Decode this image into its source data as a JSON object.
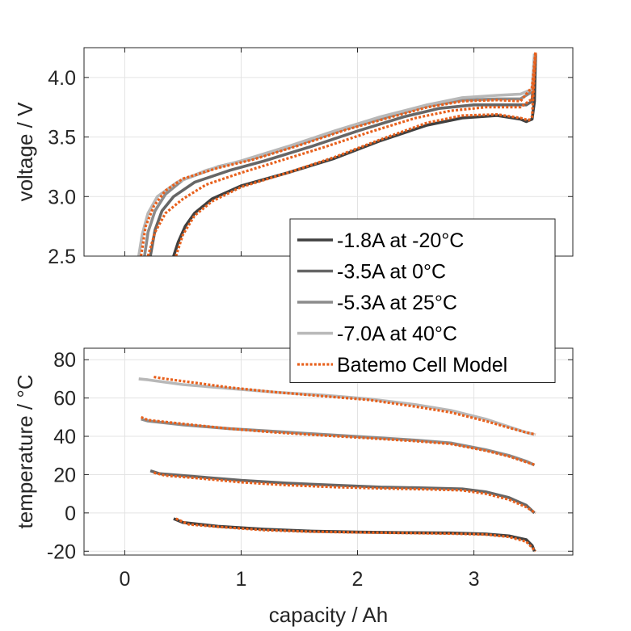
{
  "chart_data": [
    {
      "type": "line",
      "ylabel": "voltage / V",
      "xlabel": "",
      "xlim": [
        -0.35,
        3.85
      ],
      "ylim": [
        2.5,
        4.25
      ],
      "xticks": [
        0,
        1,
        2,
        3
      ],
      "yticks": [
        2.5,
        3.0,
        3.5,
        4.0
      ],
      "ytick_labels": [
        "2.5",
        "3.0",
        "3.5",
        "4.0"
      ],
      "grid": true,
      "legend_placement": "bottom-right, overlapping",
      "series": [
        {
          "name": "-1.8A at -20°C",
          "color": "#404040",
          "style": "solid",
          "x": [
            0.42,
            0.46,
            0.52,
            0.6,
            0.75,
            1.0,
            1.4,
            1.8,
            2.2,
            2.6,
            2.9,
            3.2,
            3.4,
            3.45,
            3.5,
            3.52,
            3.53
          ],
          "y": [
            2.5,
            2.62,
            2.75,
            2.86,
            2.98,
            3.09,
            3.2,
            3.32,
            3.47,
            3.6,
            3.66,
            3.68,
            3.65,
            3.63,
            3.65,
            3.8,
            4.2
          ]
        },
        {
          "name": "-3.5A at 0°C",
          "color": "#666666",
          "style": "solid",
          "x": [
            0.22,
            0.26,
            0.32,
            0.42,
            0.6,
            0.9,
            1.2,
            1.6,
            2.0,
            2.4,
            2.7,
            3.0,
            3.3,
            3.45,
            3.5,
            3.52
          ],
          "y": [
            2.5,
            2.72,
            2.88,
            3.0,
            3.12,
            3.22,
            3.3,
            3.42,
            3.55,
            3.67,
            3.74,
            3.77,
            3.77,
            3.77,
            3.8,
            4.15
          ]
        },
        {
          "name": "-5.3A at 25°C",
          "color": "#8c8c8c",
          "style": "solid",
          "x": [
            0.17,
            0.2,
            0.26,
            0.35,
            0.5,
            0.8,
            1.1,
            1.5,
            1.9,
            2.3,
            2.6,
            2.9,
            3.2,
            3.4,
            3.5,
            3.52
          ],
          "y": [
            2.5,
            2.7,
            2.88,
            3.02,
            3.14,
            3.25,
            3.32,
            3.44,
            3.57,
            3.68,
            3.76,
            3.81,
            3.82,
            3.82,
            3.88,
            4.18
          ]
        },
        {
          "name": "-7.0A at 40°C",
          "color": "#b8b8b8",
          "style": "solid",
          "x": [
            0.12,
            0.15,
            0.2,
            0.28,
            0.45,
            0.7,
            1.0,
            1.4,
            1.8,
            2.2,
            2.6,
            2.9,
            3.2,
            3.4,
            3.5,
            3.52
          ],
          "y": [
            2.5,
            2.68,
            2.86,
            3.0,
            3.12,
            3.22,
            3.3,
            3.42,
            3.55,
            3.67,
            3.77,
            3.83,
            3.85,
            3.86,
            3.9,
            4.2
          ]
        },
        {
          "name": "Batemo Cell Model",
          "color": "#e8601c",
          "style": "dotted",
          "x": [
            0.44,
            0.5,
            0.6,
            0.75,
            1.0,
            1.4,
            1.8,
            2.2,
            2.6,
            2.9,
            3.2,
            3.4,
            3.47,
            3.5,
            3.53
          ],
          "y": [
            2.5,
            2.68,
            2.84,
            2.96,
            3.08,
            3.2,
            3.33,
            3.48,
            3.62,
            3.68,
            3.69,
            3.66,
            3.64,
            3.67,
            4.22
          ]
        },
        {
          "name": "",
          "color": "#e8601c",
          "style": "dotted",
          "x": [
            0.14,
            0.18,
            0.25,
            0.35,
            0.5,
            0.8,
            1.1,
            1.5,
            1.9,
            2.3,
            2.6,
            2.9,
            3.2,
            3.4,
            3.5,
            3.53
          ],
          "y": [
            2.5,
            2.75,
            2.92,
            3.05,
            3.15,
            3.24,
            3.31,
            3.43,
            3.56,
            3.67,
            3.75,
            3.8,
            3.81,
            3.8,
            3.92,
            4.22
          ]
        },
        {
          "name": "",
          "color": "#e8601c",
          "style": "dotted",
          "x": [
            0.2,
            0.26,
            0.35,
            0.5,
            0.7,
            1.0,
            1.3,
            1.7,
            2.1,
            2.5,
            2.8,
            3.1,
            3.4,
            3.5,
            3.53
          ],
          "y": [
            2.5,
            2.7,
            2.86,
            2.98,
            3.1,
            3.2,
            3.29,
            3.41,
            3.54,
            3.66,
            3.72,
            3.75,
            3.75,
            3.82,
            4.2
          ]
        }
      ]
    },
    {
      "type": "line",
      "ylabel": "temperature / °C",
      "xlabel": "capacity / Ah",
      "xlim": [
        -0.35,
        3.85
      ],
      "ylim": [
        -22,
        86
      ],
      "xticks": [
        0,
        1,
        2,
        3
      ],
      "xtick_labels": [
        "0",
        "1",
        "2",
        "3"
      ],
      "yticks": [
        -20,
        0,
        20,
        40,
        60,
        80
      ],
      "ytick_labels": [
        "-20",
        "0",
        "20",
        "40",
        "60",
        "80"
      ],
      "grid": true,
      "series": [
        {
          "name": "-1.8A at -20°C",
          "color": "#404040",
          "style": "solid",
          "x": [
            0.42,
            0.5,
            0.8,
            1.2,
            1.6,
            2.0,
            2.4,
            2.8,
            3.1,
            3.3,
            3.45,
            3.5,
            3.52
          ],
          "y": [
            -3,
            -5,
            -7,
            -8.5,
            -9.5,
            -10,
            -10.3,
            -10.5,
            -11,
            -12,
            -14,
            -17,
            -20
          ]
        },
        {
          "name": "-3.5A at 0°C",
          "color": "#666666",
          "style": "solid",
          "x": [
            0.22,
            0.3,
            0.6,
            1.0,
            1.4,
            1.8,
            2.2,
            2.6,
            2.9,
            3.1,
            3.3,
            3.45,
            3.52
          ],
          "y": [
            22,
            20.5,
            19,
            17,
            15.5,
            14.5,
            13.5,
            13,
            12.5,
            11,
            8,
            4,
            0
          ]
        },
        {
          "name": "-5.3A at 25°C",
          "color": "#8c8c8c",
          "style": "solid",
          "x": [
            0.14,
            0.2,
            0.5,
            0.9,
            1.3,
            1.7,
            2.1,
            2.5,
            2.8,
            3.1,
            3.3,
            3.45,
            3.52
          ],
          "y": [
            49,
            48,
            46,
            44,
            42.5,
            41,
            39.5,
            38,
            36.5,
            33,
            30,
            27,
            25
          ]
        },
        {
          "name": "-7.0A at 40°C",
          "color": "#b8b8b8",
          "style": "solid",
          "x": [
            0.12,
            0.2,
            0.5,
            0.9,
            1.3,
            1.7,
            2.1,
            2.5,
            2.8,
            3.1,
            3.3,
            3.45,
            3.52
          ],
          "y": [
            70,
            69.5,
            67,
            65,
            63,
            61.5,
            59.5,
            56.5,
            53.5,
            49,
            45,
            42,
            41
          ]
        },
        {
          "name": "Batemo Cell Model",
          "color": "#e8601c",
          "style": "dotted",
          "x": [
            0.44,
            0.55,
            0.85,
            1.2,
            1.6,
            2.0,
            2.4,
            2.8,
            3.1,
            3.3,
            3.45,
            3.53
          ],
          "y": [
            -3,
            -6,
            -7.5,
            -9,
            -9.8,
            -10.2,
            -10.5,
            -10.8,
            -11.3,
            -12.5,
            -15,
            -20
          ]
        },
        {
          "name": "",
          "color": "#e8601c",
          "style": "dotted",
          "x": [
            0.25,
            0.35,
            0.65,
            1.0,
            1.4,
            1.8,
            2.2,
            2.6,
            2.9,
            3.1,
            3.3,
            3.45,
            3.53
          ],
          "y": [
            21,
            19.5,
            18,
            16,
            14.5,
            13.5,
            12.8,
            12.3,
            11.8,
            10,
            7,
            3,
            0
          ]
        },
        {
          "name": "",
          "color": "#e8601c",
          "style": "dotted",
          "x": [
            0.14,
            0.2,
            0.5,
            0.9,
            1.3,
            1.7,
            2.1,
            2.5,
            2.8,
            3.1,
            3.3,
            3.45,
            3.53
          ],
          "y": [
            50,
            48.5,
            46.5,
            44,
            42,
            40.5,
            39,
            37.5,
            36,
            32.5,
            29.5,
            26.5,
            25
          ]
        },
        {
          "name": "",
          "color": "#e8601c",
          "style": "dotted",
          "x": [
            0.25,
            0.35,
            0.6,
            0.9,
            1.3,
            1.7,
            2.1,
            2.5,
            2.8,
            3.1,
            3.3,
            3.45,
            3.53
          ],
          "y": [
            71,
            70,
            68,
            65.5,
            63,
            61,
            59,
            55.5,
            52.5,
            48,
            44.5,
            42,
            41
          ]
        }
      ]
    }
  ]
}
